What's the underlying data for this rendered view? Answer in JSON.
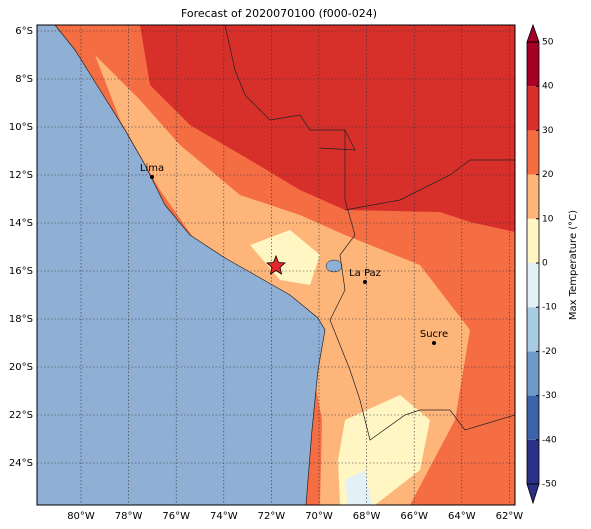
{
  "title": "Forecast of 2020070100 (f000-024)",
  "map": {
    "lat_labels": [
      "6°S",
      "8°S",
      "10°S",
      "12°S",
      "14°S",
      "16°S",
      "18°S",
      "20°S",
      "22°S",
      "24°S"
    ],
    "lon_labels": [
      "80°W",
      "78°W",
      "76°W",
      "74°W",
      "72°W",
      "70°W",
      "68°W",
      "66°W",
      "64°W",
      "62°W"
    ],
    "cities": [
      {
        "name": "Lima"
      },
      {
        "name": "La Paz"
      },
      {
        "name": "Sucre"
      }
    ]
  },
  "colorbar": {
    "label": "Max Temperature (°C)",
    "range": [
      -50,
      50
    ],
    "ticks": [
      -50,
      -40,
      -30,
      -20,
      -10,
      0,
      10,
      20,
      30,
      40,
      50
    ],
    "colors": [
      "#2b2f86",
      "#3e62a8",
      "#6d9ac6",
      "#a9cbe2",
      "#e3f1f6",
      "#fff6c4",
      "#fdb57a",
      "#f46d43",
      "#d7302b",
      "#a50026"
    ]
  }
}
